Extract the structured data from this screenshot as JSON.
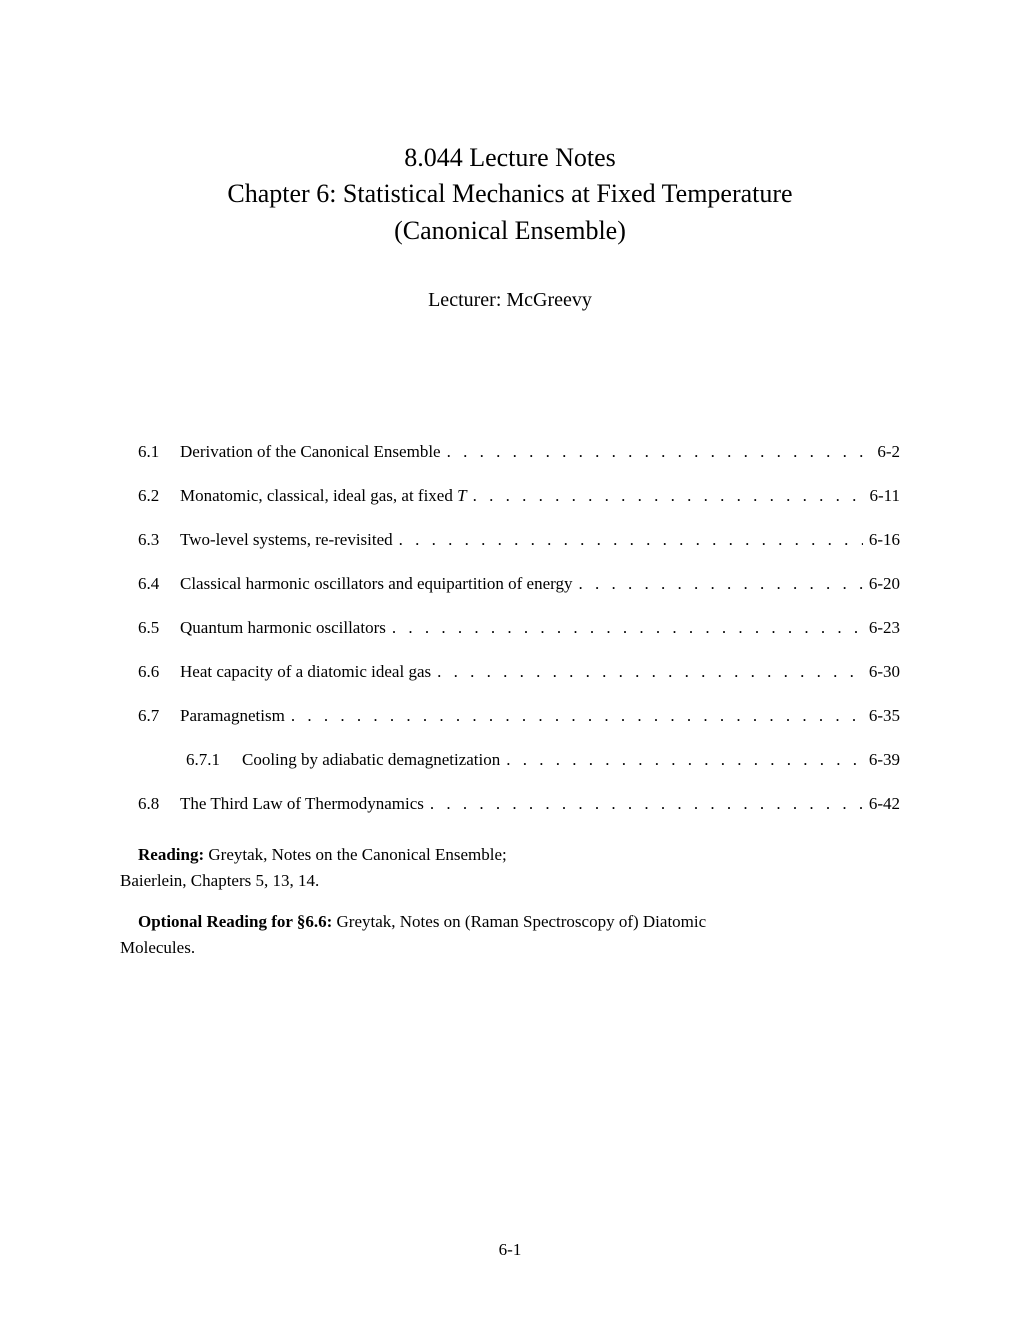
{
  "title": {
    "line1": "8.044 Lecture Notes",
    "line2": "Chapter 6: Statistical Mechanics at Fixed Temperature",
    "line3": "(Canonical Ensemble)"
  },
  "lecturer": "Lecturer: McGreevy",
  "toc": [
    {
      "num": "6.1",
      "title": "Derivation of the Canonical Ensemble",
      "page": "6-2",
      "sub": false
    },
    {
      "num": "6.2",
      "title_pre": "Monatomic, classical, ideal gas, at fixed ",
      "title_italic": "T",
      "page": "6-11",
      "sub": false
    },
    {
      "num": "6.3",
      "title": "Two-level systems, re-revisited",
      "page": "6-16",
      "sub": false
    },
    {
      "num": "6.4",
      "title": "Classical harmonic oscillators and equipartition of energy",
      "page": "6-20",
      "sub": false
    },
    {
      "num": "6.5",
      "title": "Quantum harmonic oscillators",
      "page": "6-23",
      "sub": false
    },
    {
      "num": "6.6",
      "title": "Heat capacity of a diatomic ideal gas",
      "page": "6-30",
      "sub": false
    },
    {
      "num": "6.7",
      "title": "Paramagnetism",
      "page": "6-35",
      "sub": false
    },
    {
      "num": "6.7.1",
      "title": "Cooling by adiabatic demagnetization",
      "page": "6-39",
      "sub": true
    },
    {
      "num": "6.8",
      "title": "The Third Law of Thermodynamics",
      "page": "6-42",
      "sub": false
    }
  ],
  "reading": {
    "label1": "Reading:",
    "text1a": " Greytak, Notes on the Canonical Ensemble;",
    "text1b": "Baierlein, Chapters 5, 13, 14.",
    "label2": "Optional Reading for §6.6:",
    "text2a": " Greytak, Notes on (Raman Spectroscopy of) Diatomic",
    "text2b": "Molecules."
  },
  "page_number": "6-1",
  "dots": ". . . . . . . . . . . . . . . . . . . . . . . . . . . . . . . . . . . . . . . . . . . . . . . . . ."
}
